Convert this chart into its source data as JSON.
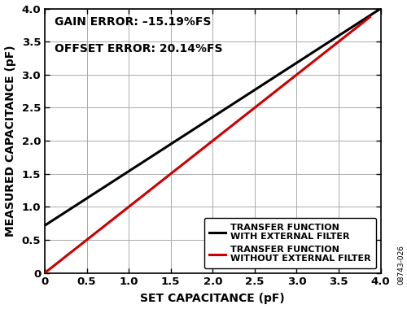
{
  "title": "",
  "xlabel": "SET CAPACITANCE (pF)",
  "ylabel": "MEASURED CAPACITANCE (pF)",
  "xlim": [
    0,
    4.0
  ],
  "ylim": [
    0,
    4.0
  ],
  "xticks": [
    0,
    0.5,
    1.0,
    1.5,
    2.0,
    2.5,
    3.0,
    3.5,
    4.0
  ],
  "yticks": [
    0,
    0.5,
    1.0,
    1.5,
    2.0,
    2.5,
    3.0,
    3.5,
    4.0
  ],
  "xtick_labels": [
    "0",
    "0.5",
    "1.0",
    "1.5",
    "2.0",
    "2.5",
    "3.0",
    "3.5",
    "4.0"
  ],
  "ytick_labels": [
    "0",
    "0.5",
    "1.0",
    "1.5",
    "2.0",
    "2.5",
    "3.0",
    "3.5",
    "4.0"
  ],
  "black_line": {
    "x": [
      0,
      4.0
    ],
    "y": [
      0.718,
      4.0
    ],
    "color": "#000000",
    "linewidth": 2.2,
    "label_line1": "TRANSFER FUNCTION",
    "label_line2": "WITH EXTERNAL FILTER"
  },
  "red_line": {
    "x": [
      0,
      3.872
    ],
    "y": [
      0.0,
      3.872
    ],
    "color": "#cc0000",
    "linewidth": 2.2,
    "label_line1": "TRANSFER FUNCTION",
    "label_line2": "WITHOUT EXTERNAL FILTER"
  },
  "annotation_line1": "GAIN ERROR: –15.19%FS",
  "annotation_line2": "OFFSET ERROR: 20.14%FS",
  "watermark": "08743-026",
  "background_color": "#ffffff",
  "grid_color": "#aaaaaa",
  "font_color": "#000000",
  "tick_fontsize": 9.5,
  "label_fontsize": 10,
  "annotation_fontsize": 10,
  "legend_fontsize": 8
}
